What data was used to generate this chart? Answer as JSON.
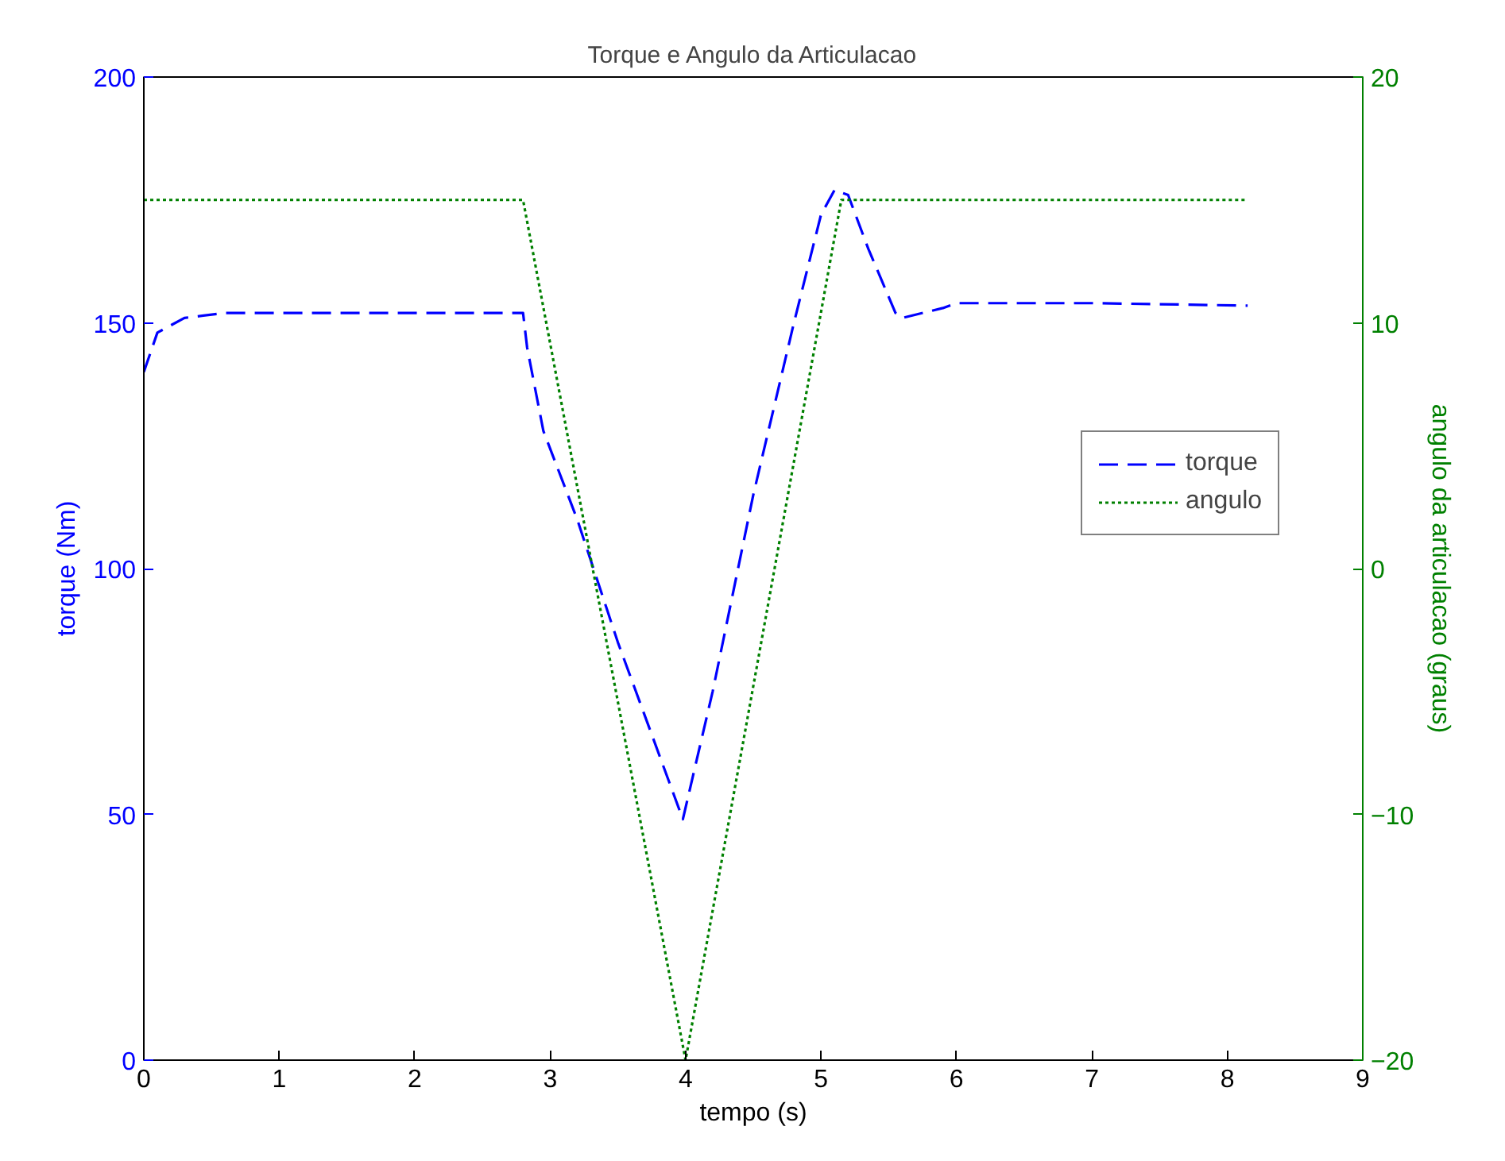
{
  "chart_data": {
    "type": "line",
    "title": "Torque e Angulo da Articulacao",
    "xlabel": "tempo (s)",
    "ylabel": "torque (Nm)",
    "y2label": "angulo da articulacao (graus)",
    "xlim": [
      0,
      9
    ],
    "xticks": [
      0,
      1,
      2,
      3,
      4,
      5,
      6,
      7,
      8,
      9
    ],
    "ylim": [
      0,
      200
    ],
    "yticks": [
      0,
      50,
      100,
      150,
      200
    ],
    "y2lim": [
      -20,
      20
    ],
    "y2ticks": [
      -20,
      -10,
      0,
      10,
      20
    ],
    "grid": false,
    "legend": "right",
    "marker": "none",
    "series": [
      {
        "name": "torque",
        "color": "#0000ff",
        "line_style": "dashed",
        "x": [
          0,
          0.1,
          0.3,
          0.6,
          1.5,
          2.8,
          2.83,
          2.95,
          3.2,
          3.5,
          3.9,
          3.98,
          4.2,
          4.5,
          4.8,
          5.0,
          5.1,
          5.2,
          5.35,
          5.55,
          5.6,
          5.9,
          6.0,
          7.0,
          8.15
        ],
        "values": [
          140,
          148,
          151,
          152,
          152,
          152,
          145,
          128,
          110,
          85,
          55,
          49,
          75,
          115,
          150,
          172,
          177,
          176,
          165,
          152,
          151,
          153,
          154,
          154,
          153.5
        ]
      },
      {
        "name": "angulo",
        "color": "#008000",
        "line_style": "dotted",
        "axis": "y2",
        "x": [
          0,
          2.8,
          4.0,
          5.15,
          8.15
        ],
        "values": [
          15,
          15,
          -20,
          15,
          15
        ]
      }
    ]
  }
}
